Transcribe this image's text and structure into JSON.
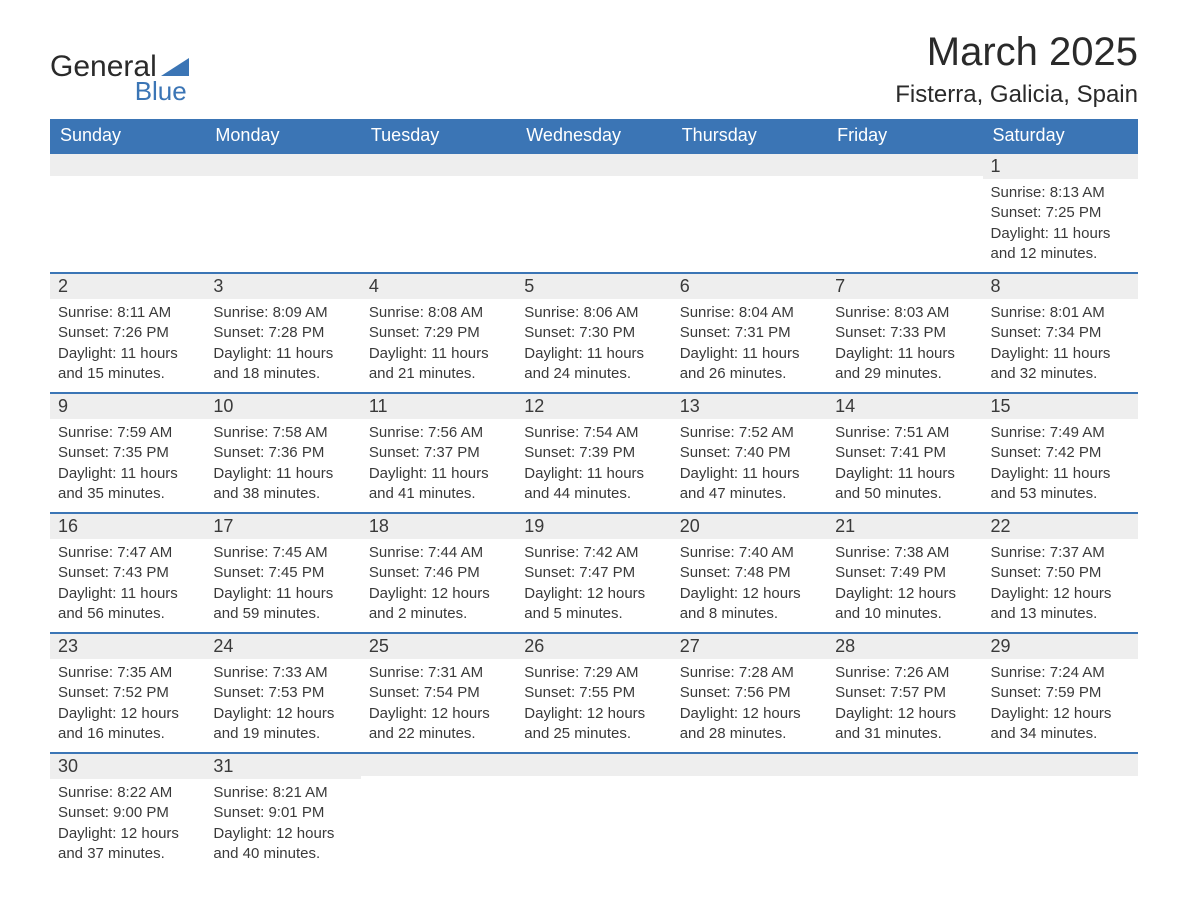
{
  "logo": {
    "general": "General",
    "blue": "Blue"
  },
  "title": "March 2025",
  "location": "Fisterra, Galicia, Spain",
  "colors": {
    "header_bg": "#3b75b5",
    "header_text": "#ffffff",
    "row_border": "#3b75b5",
    "daybar_bg": "#eeeeee",
    "text": "#3a3a3a",
    "page_bg": "#ffffff"
  },
  "typography": {
    "title_fontsize": 40,
    "location_fontsize": 24,
    "header_fontsize": 18,
    "daynum_fontsize": 18,
    "body_fontsize": 15,
    "font_family": "Arial"
  },
  "layout": {
    "columns": 7,
    "rows": 6
  },
  "day_headers": [
    "Sunday",
    "Monday",
    "Tuesday",
    "Wednesday",
    "Thursday",
    "Friday",
    "Saturday"
  ],
  "weeks": [
    [
      {
        "num": "",
        "sunrise": "",
        "sunset": "",
        "daylight1": "",
        "daylight2": ""
      },
      {
        "num": "",
        "sunrise": "",
        "sunset": "",
        "daylight1": "",
        "daylight2": ""
      },
      {
        "num": "",
        "sunrise": "",
        "sunset": "",
        "daylight1": "",
        "daylight2": ""
      },
      {
        "num": "",
        "sunrise": "",
        "sunset": "",
        "daylight1": "",
        "daylight2": ""
      },
      {
        "num": "",
        "sunrise": "",
        "sunset": "",
        "daylight1": "",
        "daylight2": ""
      },
      {
        "num": "",
        "sunrise": "",
        "sunset": "",
        "daylight1": "",
        "daylight2": ""
      },
      {
        "num": "1",
        "sunrise": "Sunrise: 8:13 AM",
        "sunset": "Sunset: 7:25 PM",
        "daylight1": "Daylight: 11 hours",
        "daylight2": "and 12 minutes."
      }
    ],
    [
      {
        "num": "2",
        "sunrise": "Sunrise: 8:11 AM",
        "sunset": "Sunset: 7:26 PM",
        "daylight1": "Daylight: 11 hours",
        "daylight2": "and 15 minutes."
      },
      {
        "num": "3",
        "sunrise": "Sunrise: 8:09 AM",
        "sunset": "Sunset: 7:28 PM",
        "daylight1": "Daylight: 11 hours",
        "daylight2": "and 18 minutes."
      },
      {
        "num": "4",
        "sunrise": "Sunrise: 8:08 AM",
        "sunset": "Sunset: 7:29 PM",
        "daylight1": "Daylight: 11 hours",
        "daylight2": "and 21 minutes."
      },
      {
        "num": "5",
        "sunrise": "Sunrise: 8:06 AM",
        "sunset": "Sunset: 7:30 PM",
        "daylight1": "Daylight: 11 hours",
        "daylight2": "and 24 minutes."
      },
      {
        "num": "6",
        "sunrise": "Sunrise: 8:04 AM",
        "sunset": "Sunset: 7:31 PM",
        "daylight1": "Daylight: 11 hours",
        "daylight2": "and 26 minutes."
      },
      {
        "num": "7",
        "sunrise": "Sunrise: 8:03 AM",
        "sunset": "Sunset: 7:33 PM",
        "daylight1": "Daylight: 11 hours",
        "daylight2": "and 29 minutes."
      },
      {
        "num": "8",
        "sunrise": "Sunrise: 8:01 AM",
        "sunset": "Sunset: 7:34 PM",
        "daylight1": "Daylight: 11 hours",
        "daylight2": "and 32 minutes."
      }
    ],
    [
      {
        "num": "9",
        "sunrise": "Sunrise: 7:59 AM",
        "sunset": "Sunset: 7:35 PM",
        "daylight1": "Daylight: 11 hours",
        "daylight2": "and 35 minutes."
      },
      {
        "num": "10",
        "sunrise": "Sunrise: 7:58 AM",
        "sunset": "Sunset: 7:36 PM",
        "daylight1": "Daylight: 11 hours",
        "daylight2": "and 38 minutes."
      },
      {
        "num": "11",
        "sunrise": "Sunrise: 7:56 AM",
        "sunset": "Sunset: 7:37 PM",
        "daylight1": "Daylight: 11 hours",
        "daylight2": "and 41 minutes."
      },
      {
        "num": "12",
        "sunrise": "Sunrise: 7:54 AM",
        "sunset": "Sunset: 7:39 PM",
        "daylight1": "Daylight: 11 hours",
        "daylight2": "and 44 minutes."
      },
      {
        "num": "13",
        "sunrise": "Sunrise: 7:52 AM",
        "sunset": "Sunset: 7:40 PM",
        "daylight1": "Daylight: 11 hours",
        "daylight2": "and 47 minutes."
      },
      {
        "num": "14",
        "sunrise": "Sunrise: 7:51 AM",
        "sunset": "Sunset: 7:41 PM",
        "daylight1": "Daylight: 11 hours",
        "daylight2": "and 50 minutes."
      },
      {
        "num": "15",
        "sunrise": "Sunrise: 7:49 AM",
        "sunset": "Sunset: 7:42 PM",
        "daylight1": "Daylight: 11 hours",
        "daylight2": "and 53 minutes."
      }
    ],
    [
      {
        "num": "16",
        "sunrise": "Sunrise: 7:47 AM",
        "sunset": "Sunset: 7:43 PM",
        "daylight1": "Daylight: 11 hours",
        "daylight2": "and 56 minutes."
      },
      {
        "num": "17",
        "sunrise": "Sunrise: 7:45 AM",
        "sunset": "Sunset: 7:45 PM",
        "daylight1": "Daylight: 11 hours",
        "daylight2": "and 59 minutes."
      },
      {
        "num": "18",
        "sunrise": "Sunrise: 7:44 AM",
        "sunset": "Sunset: 7:46 PM",
        "daylight1": "Daylight: 12 hours",
        "daylight2": "and 2 minutes."
      },
      {
        "num": "19",
        "sunrise": "Sunrise: 7:42 AM",
        "sunset": "Sunset: 7:47 PM",
        "daylight1": "Daylight: 12 hours",
        "daylight2": "and 5 minutes."
      },
      {
        "num": "20",
        "sunrise": "Sunrise: 7:40 AM",
        "sunset": "Sunset: 7:48 PM",
        "daylight1": "Daylight: 12 hours",
        "daylight2": "and 8 minutes."
      },
      {
        "num": "21",
        "sunrise": "Sunrise: 7:38 AM",
        "sunset": "Sunset: 7:49 PM",
        "daylight1": "Daylight: 12 hours",
        "daylight2": "and 10 minutes."
      },
      {
        "num": "22",
        "sunrise": "Sunrise: 7:37 AM",
        "sunset": "Sunset: 7:50 PM",
        "daylight1": "Daylight: 12 hours",
        "daylight2": "and 13 minutes."
      }
    ],
    [
      {
        "num": "23",
        "sunrise": "Sunrise: 7:35 AM",
        "sunset": "Sunset: 7:52 PM",
        "daylight1": "Daylight: 12 hours",
        "daylight2": "and 16 minutes."
      },
      {
        "num": "24",
        "sunrise": "Sunrise: 7:33 AM",
        "sunset": "Sunset: 7:53 PM",
        "daylight1": "Daylight: 12 hours",
        "daylight2": "and 19 minutes."
      },
      {
        "num": "25",
        "sunrise": "Sunrise: 7:31 AM",
        "sunset": "Sunset: 7:54 PM",
        "daylight1": "Daylight: 12 hours",
        "daylight2": "and 22 minutes."
      },
      {
        "num": "26",
        "sunrise": "Sunrise: 7:29 AM",
        "sunset": "Sunset: 7:55 PM",
        "daylight1": "Daylight: 12 hours",
        "daylight2": "and 25 minutes."
      },
      {
        "num": "27",
        "sunrise": "Sunrise: 7:28 AM",
        "sunset": "Sunset: 7:56 PM",
        "daylight1": "Daylight: 12 hours",
        "daylight2": "and 28 minutes."
      },
      {
        "num": "28",
        "sunrise": "Sunrise: 7:26 AM",
        "sunset": "Sunset: 7:57 PM",
        "daylight1": "Daylight: 12 hours",
        "daylight2": "and 31 minutes."
      },
      {
        "num": "29",
        "sunrise": "Sunrise: 7:24 AM",
        "sunset": "Sunset: 7:59 PM",
        "daylight1": "Daylight: 12 hours",
        "daylight2": "and 34 minutes."
      }
    ],
    [
      {
        "num": "30",
        "sunrise": "Sunrise: 8:22 AM",
        "sunset": "Sunset: 9:00 PM",
        "daylight1": "Daylight: 12 hours",
        "daylight2": "and 37 minutes."
      },
      {
        "num": "31",
        "sunrise": "Sunrise: 8:21 AM",
        "sunset": "Sunset: 9:01 PM",
        "daylight1": "Daylight: 12 hours",
        "daylight2": "and 40 minutes."
      },
      {
        "num": "",
        "sunrise": "",
        "sunset": "",
        "daylight1": "",
        "daylight2": ""
      },
      {
        "num": "",
        "sunrise": "",
        "sunset": "",
        "daylight1": "",
        "daylight2": ""
      },
      {
        "num": "",
        "sunrise": "",
        "sunset": "",
        "daylight1": "",
        "daylight2": ""
      },
      {
        "num": "",
        "sunrise": "",
        "sunset": "",
        "daylight1": "",
        "daylight2": ""
      },
      {
        "num": "",
        "sunrise": "",
        "sunset": "",
        "daylight1": "",
        "daylight2": ""
      }
    ]
  ]
}
